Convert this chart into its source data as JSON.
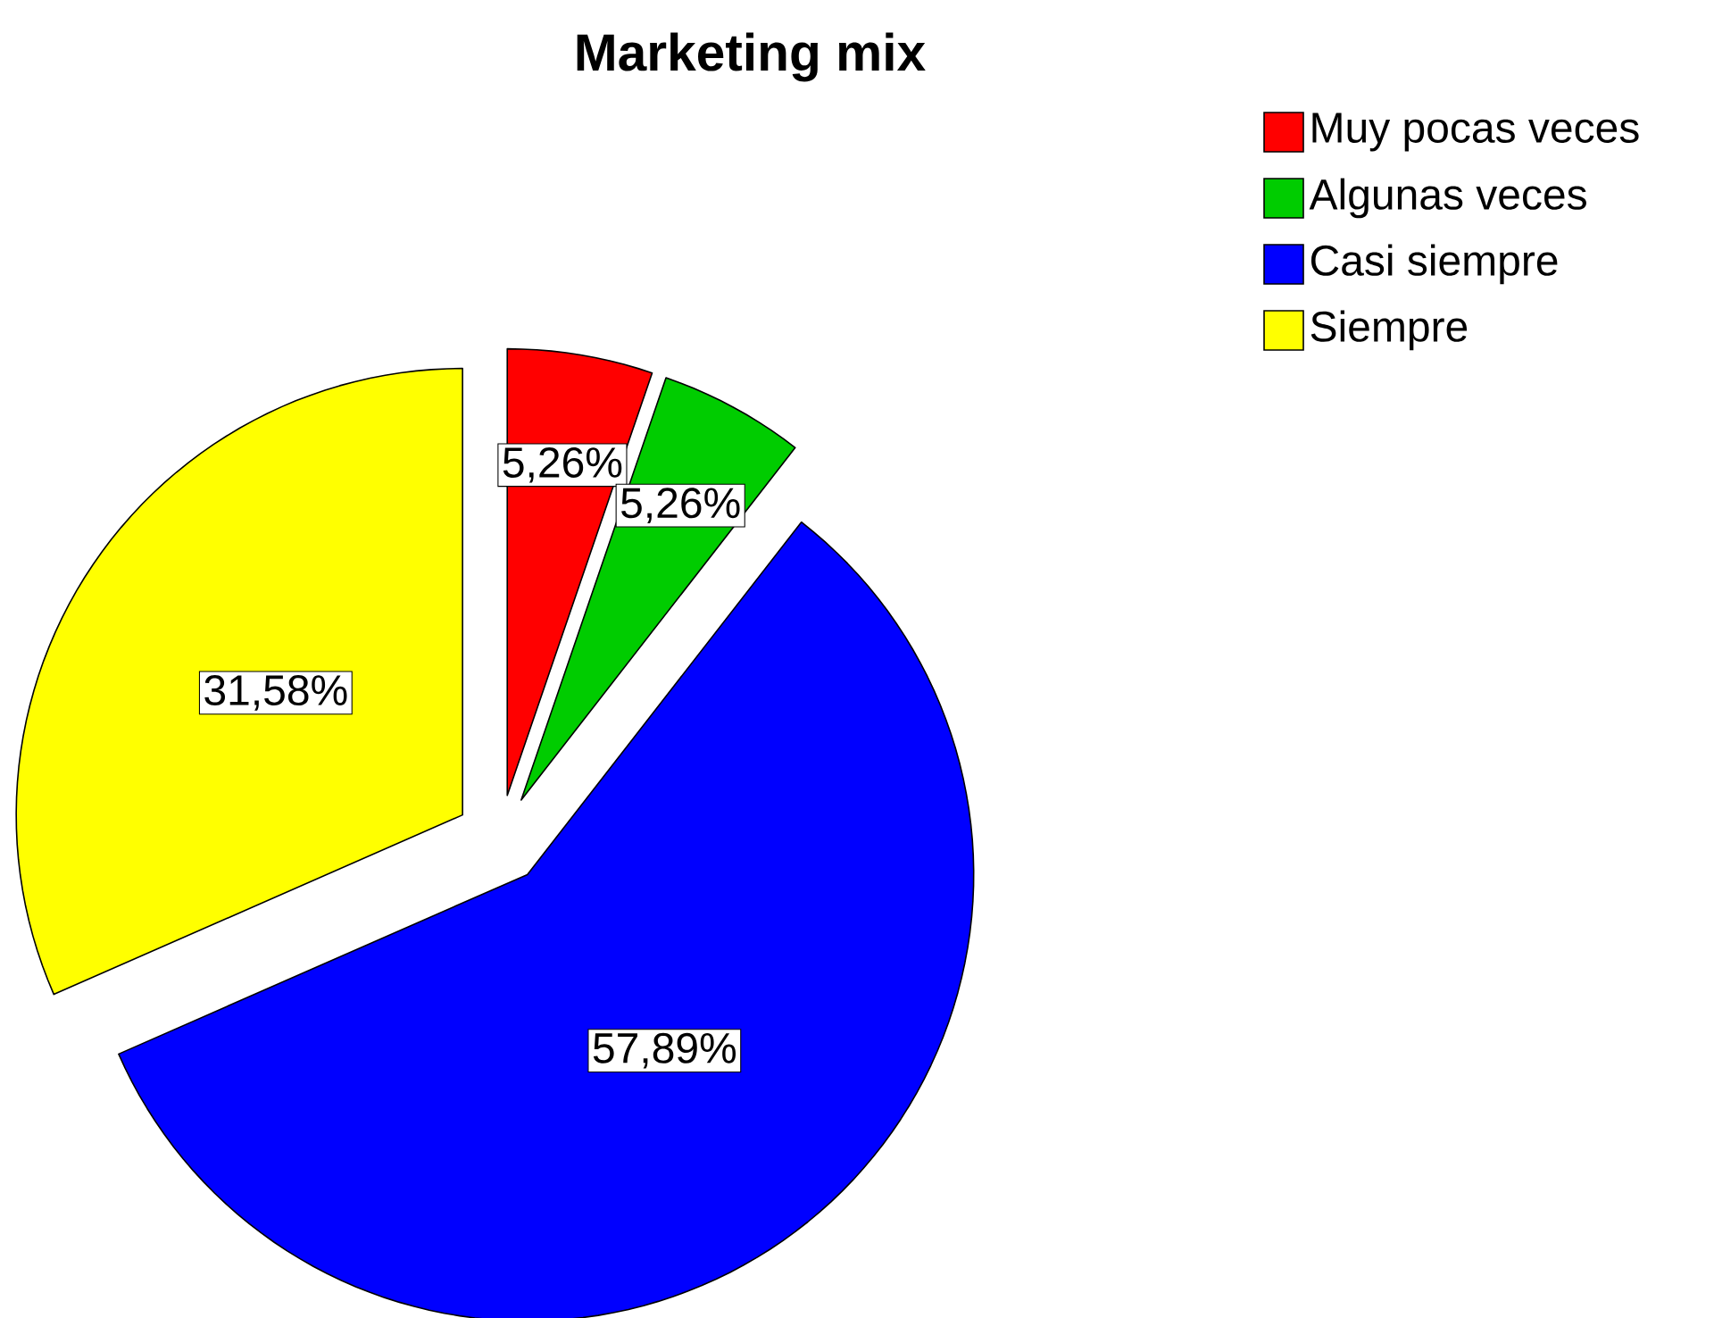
{
  "chart_data": {
    "type": "pie",
    "title": "Marketing mix",
    "categories": [
      "Muy pocas veces",
      "Algunas veces",
      "Casi siempre",
      "Siempre"
    ],
    "values": [
      5.26,
      5.26,
      57.89,
      31.58
    ],
    "colors": [
      "#ff0000",
      "#00cc00",
      "#0000ff",
      "#ffff00"
    ],
    "value_labels": [
      "5,26%",
      "5,26%",
      "57,89%",
      "31,58%"
    ],
    "legend": "top right"
  }
}
